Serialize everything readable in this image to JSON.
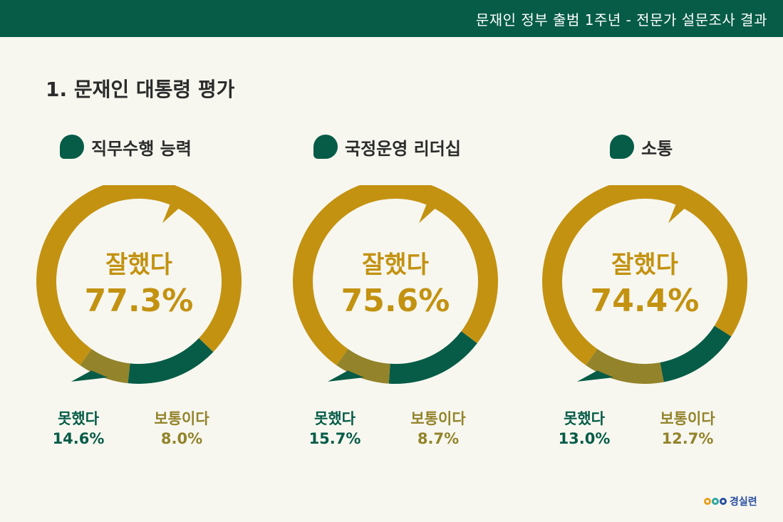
{
  "header": {
    "title": "문재인 정부 출범 1주년 - 전문가 설문조사 결과"
  },
  "section": {
    "title": "1. 문재인 대통령 평가"
  },
  "colors": {
    "good": "#c39211",
    "bad": "#065c47",
    "neutral": "#93832a",
    "header": "#065c47"
  },
  "chart_data": [
    {
      "type": "pie",
      "title": "직무수행 능력",
      "center_label": "잘했다",
      "center_value": "77.3%",
      "slices": [
        {
          "name": "잘했다",
          "value": 77.3,
          "label": "77.3%"
        },
        {
          "name": "못했다",
          "value": 14.6,
          "label": "14.6%"
        },
        {
          "name": "보통이다",
          "value": 8.0,
          "label": "8.0%"
        }
      ]
    },
    {
      "type": "pie",
      "title": "국정운영 리더십",
      "center_label": "잘했다",
      "center_value": "75.6%",
      "slices": [
        {
          "name": "잘했다",
          "value": 75.6,
          "label": "75.6%"
        },
        {
          "name": "못했다",
          "value": 15.7,
          "label": "15.7%"
        },
        {
          "name": "보통이다",
          "value": 8.7,
          "label": "8.7%"
        }
      ]
    },
    {
      "type": "pie",
      "title": "소통",
      "center_label": "잘했다",
      "center_value": "74.4%",
      "slices": [
        {
          "name": "잘했다",
          "value": 74.4,
          "label": "74.4%"
        },
        {
          "name": "못했다",
          "value": 13.0,
          "label": "13.0%"
        },
        {
          "name": "보통이다",
          "value": 12.7,
          "label": "12.7%"
        }
      ]
    }
  ],
  "logo": {
    "text": "경실련"
  }
}
